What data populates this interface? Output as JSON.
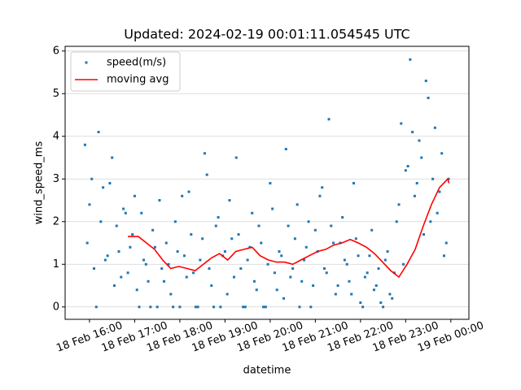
{
  "chart_data": {
    "type": "scatter_line",
    "title": "Updated: 2024-02-19 00:01:11.054545 UTC",
    "xlabel": "datetime",
    "ylabel": "wind_speed_ms",
    "xlim": [
      15.46,
      24.4
    ],
    "ylim": [
      -0.29,
      6.11
    ],
    "xticks": [
      {
        "value": 16,
        "label": "18 Feb 16:00"
      },
      {
        "value": 17,
        "label": "18 Feb 17:00"
      },
      {
        "value": 18,
        "label": "18 Feb 18:00"
      },
      {
        "value": 19,
        "label": "18 Feb 19:00"
      },
      {
        "value": 20,
        "label": "18 Feb 20:00"
      },
      {
        "value": 21,
        "label": "18 Feb 21:00"
      },
      {
        "value": 22,
        "label": "18 Feb 22:00"
      },
      {
        "value": 23,
        "label": "18 Feb 23:00"
      },
      {
        "value": 24,
        "label": "19 Feb 00:00"
      }
    ],
    "yticks": [
      0,
      1,
      2,
      3,
      4,
      5,
      6
    ],
    "grid": "y",
    "legend": "upper left",
    "series": [
      {
        "name": "speed(m/s)",
        "kind": "scatter",
        "color": "#1f77b4",
        "x": [
          15.9,
          15.95,
          16,
          16.05,
          16.1,
          16.15,
          16.2,
          16.25,
          16.3,
          16.35,
          16.4,
          16.45,
          16.5,
          16.55,
          16.6,
          16.65,
          16.7,
          16.75,
          16.8,
          16.85,
          16.9,
          16.95,
          17,
          17.05,
          17.1,
          17.15,
          17.2,
          17.25,
          17.3,
          17.35,
          17.4,
          17.45,
          17.5,
          17.55,
          17.6,
          17.65,
          17.7,
          17.75,
          17.8,
          17.85,
          17.9,
          17.95,
          18,
          18.05,
          18.1,
          18.15,
          18.2,
          18.25,
          18.3,
          18.35,
          18.4,
          18.45,
          18.5,
          18.55,
          18.6,
          18.65,
          18.7,
          18.75,
          18.8,
          18.85,
          18.9,
          18.95,
          19,
          19.05,
          19.1,
          19.15,
          19.2,
          19.25,
          19.3,
          19.35,
          19.4,
          19.45,
          19.5,
          19.55,
          19.6,
          19.65,
          19.7,
          19.75,
          19.8,
          19.85,
          19.9,
          19.95,
          20,
          20.05,
          20.1,
          20.15,
          20.2,
          20.25,
          20.3,
          20.35,
          20.4,
          20.45,
          20.5,
          20.55,
          20.6,
          20.65,
          20.7,
          20.75,
          20.8,
          20.85,
          20.9,
          20.95,
          21,
          21.05,
          21.1,
          21.15,
          21.2,
          21.25,
          21.3,
          21.35,
          21.4,
          21.45,
          21.5,
          21.55,
          21.6,
          21.65,
          21.7,
          21.75,
          21.8,
          21.85,
          21.9,
          21.95,
          22,
          22.05,
          22.1,
          22.15,
          22.2,
          22.25,
          22.3,
          22.35,
          22.4,
          22.45,
          22.5,
          22.55,
          22.6,
          22.65,
          22.7,
          22.75,
          22.8,
          22.85,
          22.9,
          22.95,
          23,
          23.05,
          23.1,
          23.15,
          23.2,
          23.25,
          23.3,
          23.35,
          23.4,
          23.45,
          23.5,
          23.55,
          23.6,
          23.65,
          23.7,
          23.75,
          23.8,
          23.85,
          23.9,
          23.95
        ],
        "values": [
          3.8,
          1.5,
          2.4,
          3.0,
          0.9,
          0.0,
          4.1,
          2.0,
          2.8,
          1.1,
          1.2,
          2.9,
          3.5,
          0.5,
          1.9,
          1.3,
          0.7,
          2.3,
          2.2,
          0.8,
          1.4,
          1.7,
          2.6,
          0.4,
          0.0,
          2.2,
          1.1,
          1.0,
          0.6,
          0.0,
          1.8,
          1.4,
          0.0,
          2.5,
          0.9,
          0.6,
          1.5,
          1.0,
          0.3,
          0.0,
          2.0,
          1.3,
          0.0,
          2.6,
          1.2,
          0.7,
          2.7,
          1.7,
          0.8,
          0.0,
          0.0,
          1.1,
          1.6,
          3.6,
          3.1,
          0.9,
          0.5,
          0.0,
          1.9,
          2.1,
          0.0,
          1.2,
          1.3,
          0.3,
          2.5,
          1.6,
          0.7,
          3.5,
          1.7,
          0.9,
          0.0,
          0.0,
          1.1,
          1.4,
          2.2,
          0.6,
          0.4,
          1.9,
          1.5,
          0.0,
          0.0,
          1.0,
          2.9,
          2.3,
          0.8,
          0.4,
          1.3,
          1.2,
          0.2,
          3.7,
          1.9,
          0.7,
          0.9,
          1.6,
          2.4,
          0.0,
          0.6,
          1.1,
          1.4,
          2.0,
          0.0,
          0.5,
          1.8,
          1.3,
          2.6,
          2.8,
          0.9,
          0.8,
          4.4,
          1.9,
          1.5,
          0.3,
          0.5,
          1.5,
          2.1,
          1.1,
          1.0,
          0.6,
          0.3,
          2.9,
          1.6,
          1.2,
          0.1,
          0.0,
          0.7,
          0.8,
          1.2,
          1.8,
          0.4,
          0.5,
          0.9,
          0.1,
          0.0,
          1.1,
          1.3,
          0.3,
          0.2,
          0.8,
          2.0,
          2.4,
          4.3,
          1.0,
          3.2,
          3.3,
          5.8,
          4.1,
          2.6,
          2.9,
          3.9,
          3.5,
          1.7,
          5.3,
          4.9,
          2.0,
          3.0,
          4.2,
          2.2,
          2.7,
          3.6,
          1.2,
          1.5,
          3.0
        ]
      },
      {
        "name": "moving avg",
        "kind": "line",
        "color": "#ff0000",
        "x": [
          16.85,
          17.08,
          17.26,
          17.44,
          17.62,
          17.8,
          17.98,
          18.16,
          18.34,
          18.52,
          18.7,
          18.88,
          19.06,
          19.24,
          19.42,
          19.6,
          19.78,
          19.96,
          20.14,
          20.32,
          20.5,
          20.68,
          20.86,
          21.05,
          21.23,
          21.41,
          21.59,
          21.77,
          21.95,
          22.13,
          22.31,
          22.49,
          22.67,
          22.85,
          23.03,
          23.21,
          23.39,
          23.57,
          23.75,
          23.93,
          23.96
        ],
        "values": [
          1.65,
          1.65,
          1.5,
          1.35,
          1.1,
          0.9,
          0.95,
          0.9,
          0.85,
          1.0,
          1.15,
          1.25,
          1.1,
          1.3,
          1.35,
          1.4,
          1.2,
          1.1,
          1.05,
          1.05,
          1.0,
          1.1,
          1.2,
          1.3,
          1.35,
          1.45,
          1.5,
          1.58,
          1.5,
          1.4,
          1.25,
          1.05,
          0.85,
          0.7,
          1.0,
          1.35,
          1.9,
          2.4,
          2.8,
          3.0,
          2.9
        ]
      }
    ]
  }
}
